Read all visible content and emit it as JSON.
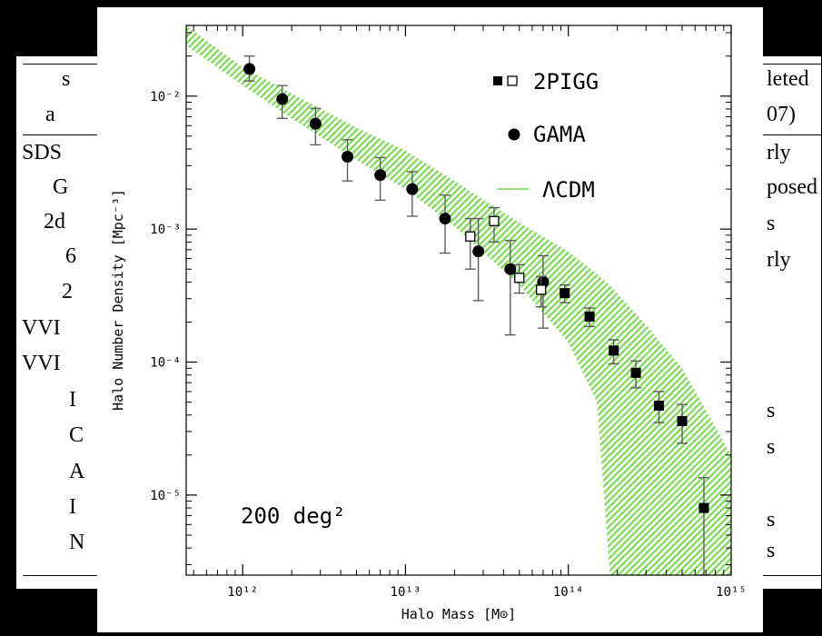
{
  "background_table": {
    "left_fragments": [
      "s",
      "a",
      "SDS",
      "G",
      "2d",
      "6",
      "2",
      "VVI",
      "VVI",
      "I",
      "C",
      "A",
      "I",
      "N"
    ],
    "right_fragments": [
      "leted",
      "07)",
      "rly",
      "posed",
      "s",
      "rly",
      "s",
      "s",
      "s",
      "s"
    ]
  },
  "chart_data": {
    "type": "scatter",
    "xlabel": "Halo Mass [M⊙]",
    "ylabel": "Halo Number Density [Mpc⁻³]",
    "xscale": "log",
    "yscale": "log",
    "xlim": [
      450000000000.0,
      1000000000000000.0
    ],
    "ylim": [
      2.5e-06,
      0.034
    ],
    "x_ticks": [
      {
        "value": 1000000000000.0,
        "label": "10¹²"
      },
      {
        "value": 10000000000000.0,
        "label": "10¹³"
      },
      {
        "value": 100000000000000.0,
        "label": "10¹⁴"
      },
      {
        "value": 1000000000000000.0,
        "label": "10¹⁵"
      }
    ],
    "y_ticks": [
      {
        "value": 1e-05,
        "label": "10⁻⁵"
      },
      {
        "value": 0.0001,
        "label": "10⁻⁴"
      },
      {
        "value": 0.001,
        "label": "10⁻³"
      },
      {
        "value": 0.01,
        "label": "10⁻²"
      }
    ],
    "annotation": "200 deg²",
    "legend": {
      "placement": "top-right",
      "entries": [
        {
          "label": "2PIGG",
          "marker": "square-filled-and-open"
        },
        {
          "label": "GAMA",
          "marker": "circle-filled"
        },
        {
          "label": "ΛCDM",
          "marker": "band"
        }
      ]
    },
    "series": [
      {
        "name": "GAMA",
        "marker": "circle-filled",
        "x": [
          1100000000000.0,
          1750000000000.0,
          2800000000000.0,
          4400000000000.0,
          7000000000000.0,
          11000000000000.0,
          17500000000000.0,
          28000000000000.0,
          44000000000000.0,
          70000000000000.0
        ],
        "y": [
          0.016,
          0.0095,
          0.0062,
          0.0035,
          0.00255,
          0.002,
          0.0012,
          0.00068,
          0.0005,
          0.0004
        ],
        "ylow": [
          0.013,
          0.0068,
          0.0043,
          0.0023,
          0.00165,
          0.00125,
          0.00066,
          0.00029,
          0.00016,
          0.00018
        ],
        "yhigh": [
          0.02,
          0.012,
          0.0081,
          0.0047,
          0.00345,
          0.0027,
          0.0018,
          0.0012,
          0.00082,
          0.00063
        ]
      },
      {
        "name": "2PIGG",
        "marker": "square-open",
        "x": [
          25000000000000.0,
          35000000000000.0,
          50000000000000.0,
          68000000000000.0
        ],
        "y": [
          0.00088,
          0.00115,
          0.00043,
          0.00035
        ],
        "ylow": [
          0.0005,
          0.0008,
          0.00033,
          0.00026
        ],
        "yhigh": [
          0.0012,
          0.00145,
          0.00054,
          0.00044
        ]
      },
      {
        "name": "2PIGG",
        "marker": "square-filled",
        "x": [
          95000000000000.0,
          135000000000000.0,
          190000000000000.0,
          260000000000000.0,
          360000000000000.0,
          500000000000000.0,
          680000000000000.0
        ],
        "y": [
          0.00033,
          0.00022,
          0.000122,
          8.3e-05,
          4.7e-05,
          3.6e-05,
          8e-06
        ],
        "ylow": [
          0.00028,
          0.000185,
          9.7e-05,
          6.4e-05,
          3.5e-05,
          2.45e-05,
          2.5e-06
        ],
        "yhigh": [
          0.00038,
          0.000255,
          0.000147,
          0.000102,
          6e-05,
          4.8e-05,
          1.35e-05
        ]
      }
    ],
    "band": {
      "name": "ΛCDM",
      "color": "#7ed957",
      "x": [
        450000000000.0,
        1000000000000.0,
        2000000000000.0,
        5000000000000.0,
        10000000000000.0,
        20000000000000.0,
        50000000000000.0,
        100000000000000.0,
        150000000000000.0,
        180000000000000.0,
        300000000000000.0,
        500000000000000.0,
        1000000000000000.0
      ],
      "upper": [
        0.034,
        0.0165,
        0.0105,
        0.0058,
        0.0039,
        0.0023,
        0.00112,
        0.00068,
        0.00046,
        0.00038,
        0.00019,
        9e-05,
        2e-05
      ],
      "lower": [
        0.024,
        0.012,
        0.0068,
        0.0033,
        0.002,
        0.00105,
        0.00038,
        0.00014,
        5e-05,
        2.5e-06,
        2.5e-06,
        2.5e-06,
        2.5e-06
      ]
    }
  }
}
